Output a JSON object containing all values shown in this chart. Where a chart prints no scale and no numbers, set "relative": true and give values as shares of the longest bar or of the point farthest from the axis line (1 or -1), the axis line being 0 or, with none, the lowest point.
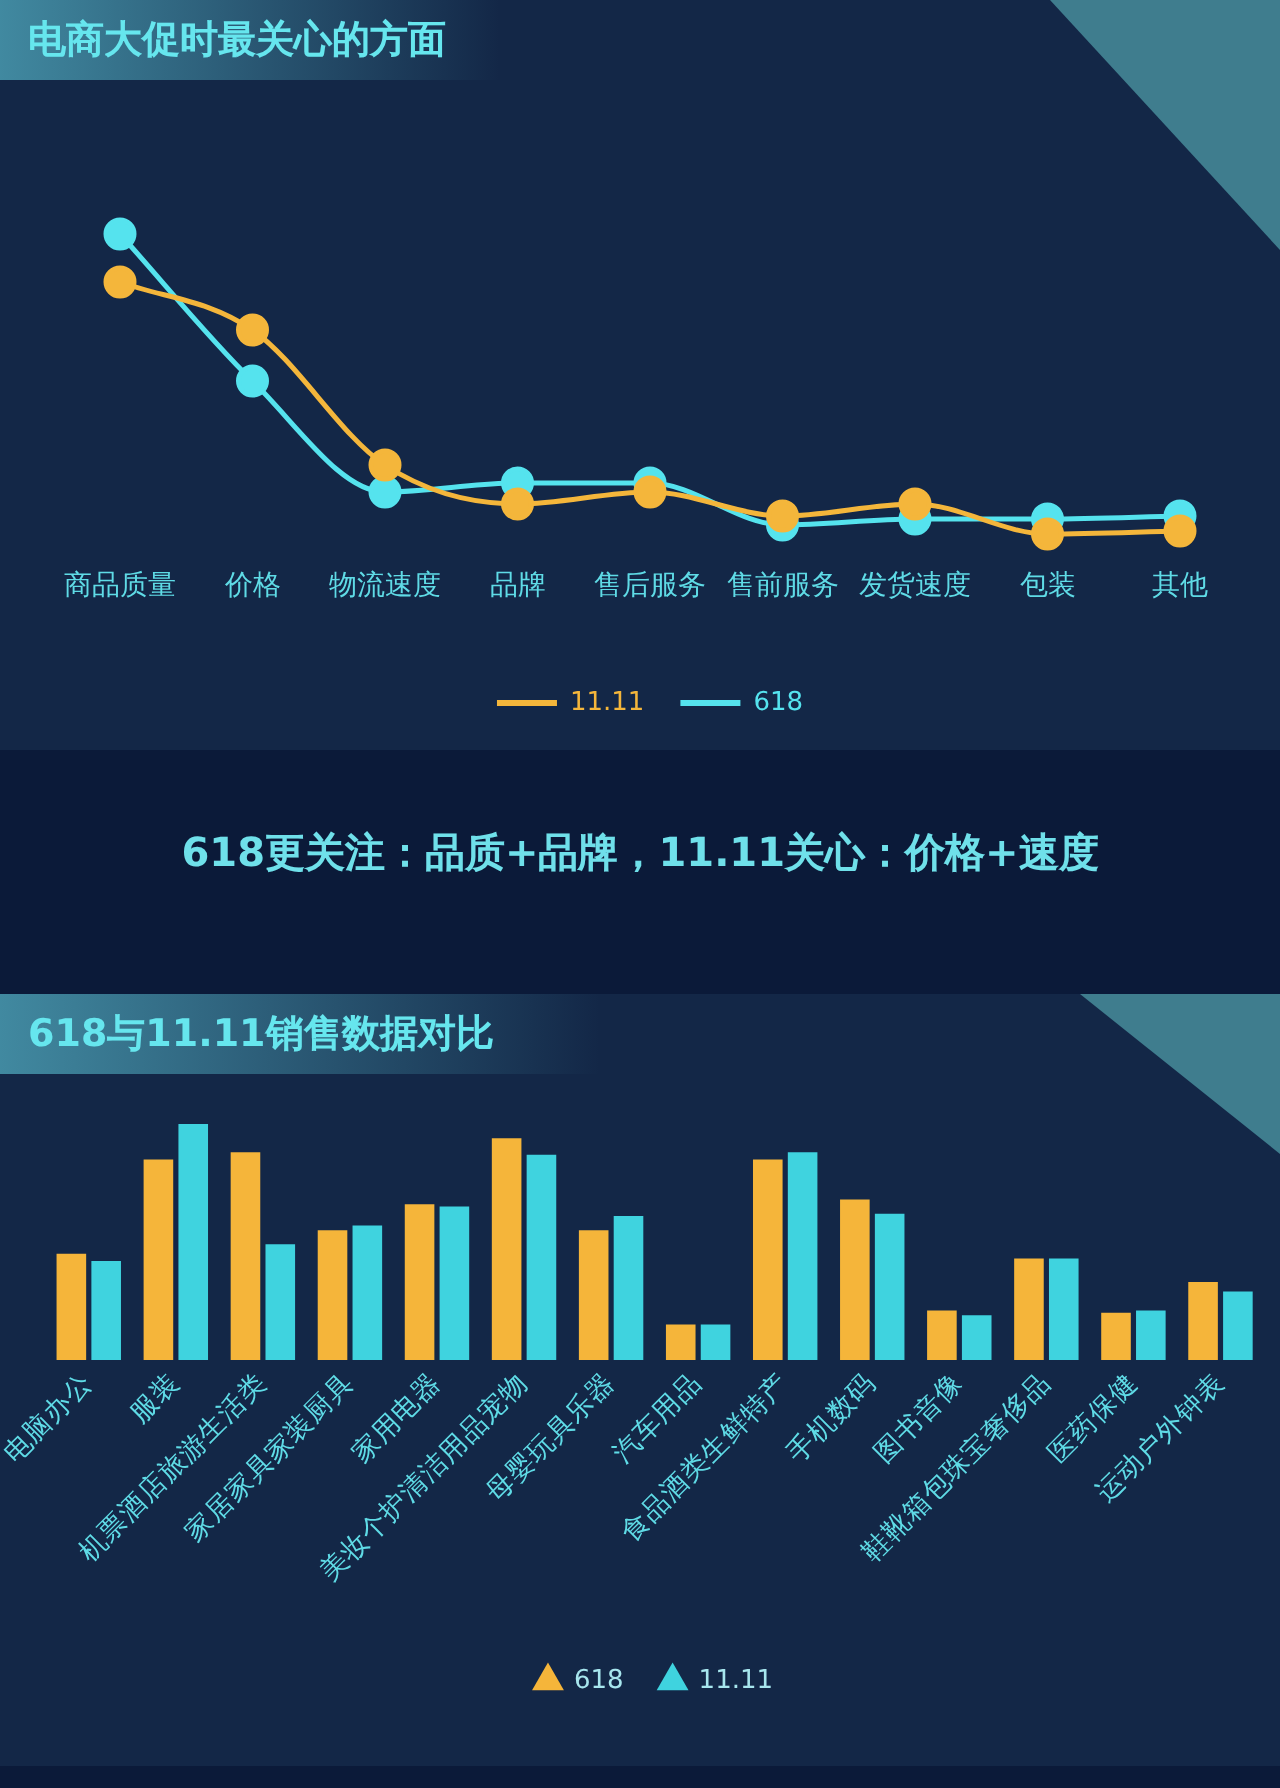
{
  "chart_data": [
    {
      "type": "line",
      "title": "电商大促时最关心的方面",
      "categories": [
        "商品质量",
        "价格",
        "物流速度",
        "品牌",
        "售后服务",
        "售前服务",
        "发货速度",
        "包装",
        "其他"
      ],
      "relative": true,
      "marker": "circle",
      "legend": "bottom",
      "series": [
        {
          "name": "11.11",
          "color": "#f4b63b",
          "values": [
            0.84,
            0.68,
            0.23,
            0.1,
            0.14,
            0.06,
            0.1,
            0,
            0.01
          ]
        },
        {
          "name": "618",
          "color": "#55e3ee",
          "values": [
            1,
            0.51,
            0.14,
            0.17,
            0.17,
            0.03,
            0.05,
            0.05,
            0.06
          ]
        }
      ],
      "annotations": [
        "618更关注：品质+品牌，11.11关心：价格+速度"
      ]
    },
    {
      "type": "bar",
      "title": "618与11.11销售数据对比",
      "categories": [
        "电脑办公",
        "服装",
        "机票酒店旅游生活类",
        "家居家具家装厨具",
        "家用电器",
        "美妆个护清洁用品宠物",
        "母婴玩具乐器",
        "汽车用品",
        "食品酒类生鲜特产",
        "手机数码",
        "图书音像",
        "鞋靴箱包珠宝奢侈品",
        "医药保健",
        "运动户外钟表"
      ],
      "relative": true,
      "legend": "bottom",
      "series": [
        {
          "name": "618",
          "color": "#f5b53a",
          "values": [
            0.45,
            0.85,
            0.88,
            0.55,
            0.66,
            0.94,
            0.55,
            0.15,
            0.85,
            0.68,
            0.21,
            0.43,
            0.2,
            0.33
          ]
        },
        {
          "name": "11.11",
          "color": "#3fd3df",
          "values": [
            0.42,
            1,
            0.49,
            0.57,
            0.65,
            0.87,
            0.61,
            0.15,
            0.88,
            0.62,
            0.19,
            0.43,
            0.21,
            0.29
          ]
        }
      ]
    }
  ]
}
